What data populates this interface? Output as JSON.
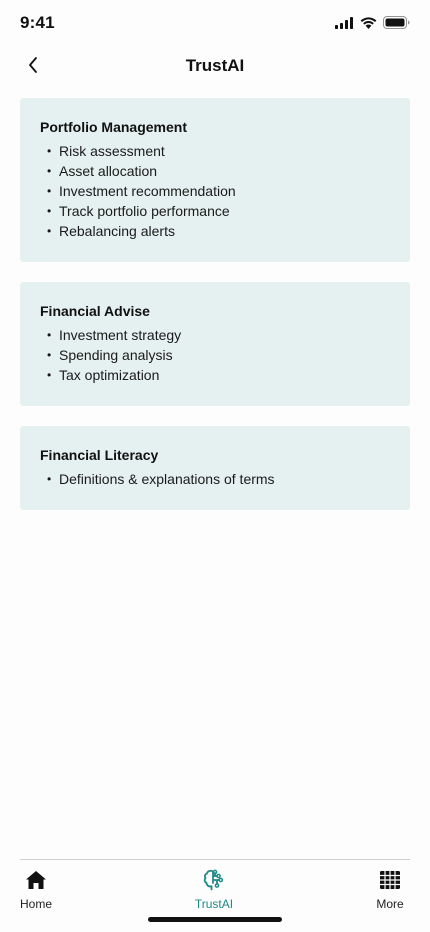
{
  "status_bar": {
    "time": "9:41",
    "icons": [
      "cellular-signal-icon",
      "wifi-icon",
      "battery-icon"
    ]
  },
  "header": {
    "title": "TrustAI",
    "back_icon": "chevron-left-icon"
  },
  "cards": [
    {
      "title": "Portfolio Management",
      "items": [
        "Risk assessment",
        "Asset allocation",
        "Investment recommendation",
        "Track portfolio performance",
        "Rebalancing alerts"
      ]
    },
    {
      "title": "Financial Advise",
      "items": [
        "Investment strategy",
        "Spending analysis",
        "Tax optimization"
      ]
    },
    {
      "title": "Financial Literacy",
      "items": [
        "Definitions & explanations of terms"
      ]
    }
  ],
  "tab_bar": {
    "tabs": [
      {
        "label": "Home",
        "icon": "home-icon",
        "active": false
      },
      {
        "label": "TrustAI",
        "icon": "ai-brain-icon",
        "active": true
      },
      {
        "label": "More",
        "icon": "grid-icon",
        "active": false
      }
    ]
  },
  "colors": {
    "card_background": "#e5f1f0",
    "accent": "#1f8a86",
    "text": "#111111"
  }
}
